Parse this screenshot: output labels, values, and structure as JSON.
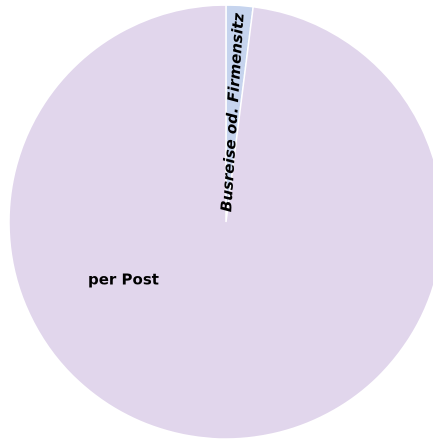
{
  "chart_data": {
    "type": "pie",
    "categories": [
      "Busreise od. Firmensitz",
      "per Post"
    ],
    "values": [
      2,
      98
    ],
    "colors": [
      "#c6d4ee",
      "#e1d6ec"
    ]
  }
}
